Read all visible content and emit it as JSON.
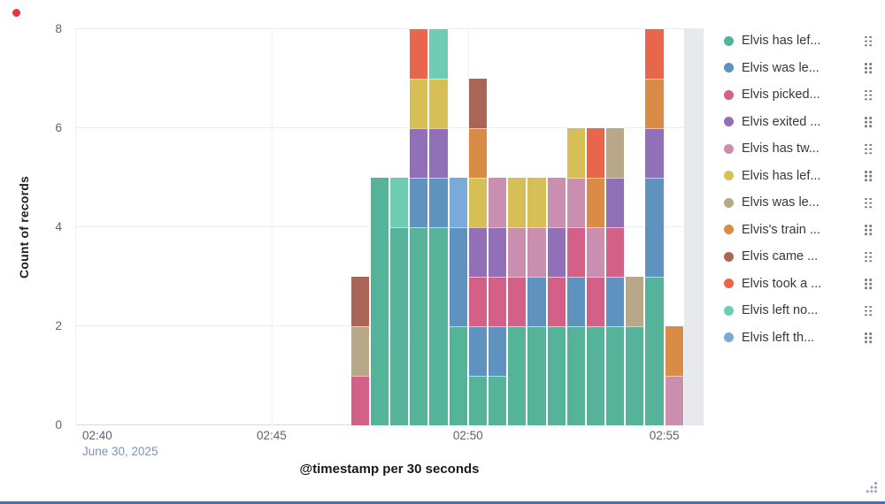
{
  "panel": {
    "red_dot_color": "#e8373d",
    "selection_border_color": "#3d74ba"
  },
  "chart_data": {
    "type": "bar",
    "stacked": true,
    "title": "",
    "xlabel": "@timestamp per 30 seconds",
    "ylabel": "Count of records",
    "ylim": [
      0,
      8
    ],
    "yticks": [
      0,
      2,
      4,
      6,
      8
    ],
    "grid": true,
    "legend_position": "right",
    "x_domain": [
      "02:40:00",
      "02:56:00"
    ],
    "bucket_seconds": 30,
    "xticks": [
      {
        "time": "02:40:00",
        "label": "02:40",
        "sublabel": "June 30, 2025"
      },
      {
        "time": "02:45:00",
        "label": "02:45"
      },
      {
        "time": "02:50:00",
        "label": "02:50"
      },
      {
        "time": "02:55:00",
        "label": "02:55"
      }
    ],
    "series": [
      {
        "label": "Elvis has lef...",
        "color": "#54B399"
      },
      {
        "label": "Elvis was le...",
        "color": "#6092C0"
      },
      {
        "label": "Elvis picked...",
        "color": "#D36086"
      },
      {
        "label": "Elvis exited ...",
        "color": "#9170B8"
      },
      {
        "label": "Elvis has tw...",
        "color": "#CA8EAE"
      },
      {
        "label": "Elvis has lef...",
        "color": "#D6BF57"
      },
      {
        "label": "Elvis was le...",
        "color": "#B9A888"
      },
      {
        "label": "Elvis's train ...",
        "color": "#DA8B45"
      },
      {
        "label": "Elvis came ...",
        "color": "#AA6556"
      },
      {
        "label": "Elvis took a ...",
        "color": "#E7664C"
      },
      {
        "label": "Elvis left no...",
        "color": "#6DCCB1"
      },
      {
        "label": "Elvis left th...",
        "color": "#79AAD9"
      }
    ],
    "bars": [
      {
        "time": "02:47:00",
        "total": 3,
        "segments": [
          [
            2,
            1
          ],
          [
            6,
            1
          ],
          [
            8,
            1
          ]
        ]
      },
      {
        "time": "02:47:30",
        "total": 5,
        "segments": [
          [
            0,
            5
          ]
        ]
      },
      {
        "time": "02:48:00",
        "total": 5,
        "segments": [
          [
            0,
            4
          ],
          [
            10,
            1
          ]
        ]
      },
      {
        "time": "02:48:30",
        "total": 8,
        "segments": [
          [
            0,
            4
          ],
          [
            1,
            1
          ],
          [
            3,
            1
          ],
          [
            5,
            1
          ],
          [
            9,
            1
          ]
        ]
      },
      {
        "time": "02:49:00",
        "total": 8,
        "segments": [
          [
            0,
            4
          ],
          [
            1,
            1
          ],
          [
            3,
            1
          ],
          [
            5,
            1
          ],
          [
            10,
            1
          ]
        ]
      },
      {
        "time": "02:49:30",
        "total": 5,
        "segments": [
          [
            0,
            2
          ],
          [
            1,
            2
          ],
          [
            11,
            1
          ]
        ]
      },
      {
        "time": "02:50:00",
        "total": 7,
        "segments": [
          [
            0,
            1
          ],
          [
            1,
            1
          ],
          [
            2,
            1
          ],
          [
            3,
            1
          ],
          [
            5,
            1
          ],
          [
            7,
            1
          ],
          [
            8,
            1
          ]
        ]
      },
      {
        "time": "02:50:30",
        "total": 5,
        "segments": [
          [
            0,
            1
          ],
          [
            1,
            1
          ],
          [
            2,
            1
          ],
          [
            3,
            1
          ],
          [
            4,
            1
          ]
        ]
      },
      {
        "time": "02:51:00",
        "total": 5,
        "segments": [
          [
            0,
            2
          ],
          [
            2,
            1
          ],
          [
            4,
            1
          ],
          [
            5,
            1
          ]
        ]
      },
      {
        "time": "02:51:30",
        "total": 5,
        "segments": [
          [
            0,
            2
          ],
          [
            1,
            1
          ],
          [
            4,
            1
          ],
          [
            5,
            1
          ]
        ]
      },
      {
        "time": "02:52:00",
        "total": 5,
        "segments": [
          [
            0,
            2
          ],
          [
            2,
            1
          ],
          [
            3,
            1
          ],
          [
            4,
            1
          ]
        ]
      },
      {
        "time": "02:52:30",
        "total": 6,
        "segments": [
          [
            0,
            2
          ],
          [
            1,
            1
          ],
          [
            2,
            1
          ],
          [
            4,
            1
          ],
          [
            5,
            1
          ]
        ]
      },
      {
        "time": "02:53:00",
        "total": 6,
        "segments": [
          [
            0,
            2
          ],
          [
            2,
            1
          ],
          [
            4,
            1
          ],
          [
            7,
            1
          ],
          [
            9,
            1
          ]
        ]
      },
      {
        "time": "02:53:30",
        "total": 6,
        "segments": [
          [
            0,
            2
          ],
          [
            1,
            1
          ],
          [
            2,
            1
          ],
          [
            3,
            1
          ],
          [
            6,
            1
          ]
        ]
      },
      {
        "time": "02:54:00",
        "total": 3,
        "segments": [
          [
            0,
            2
          ],
          [
            6,
            1
          ]
        ]
      },
      {
        "time": "02:54:30",
        "total": 8,
        "segments": [
          [
            0,
            3
          ],
          [
            1,
            2
          ],
          [
            3,
            1
          ],
          [
            7,
            1
          ],
          [
            9,
            1
          ]
        ]
      },
      {
        "time": "02:55:00",
        "total": 2,
        "segments": [
          [
            4,
            1
          ],
          [
            7,
            1
          ]
        ]
      }
    ],
    "partial_bucket": {
      "start": "02:55:30",
      "end": "02:56:00",
      "color": "#e6e7eb"
    }
  }
}
